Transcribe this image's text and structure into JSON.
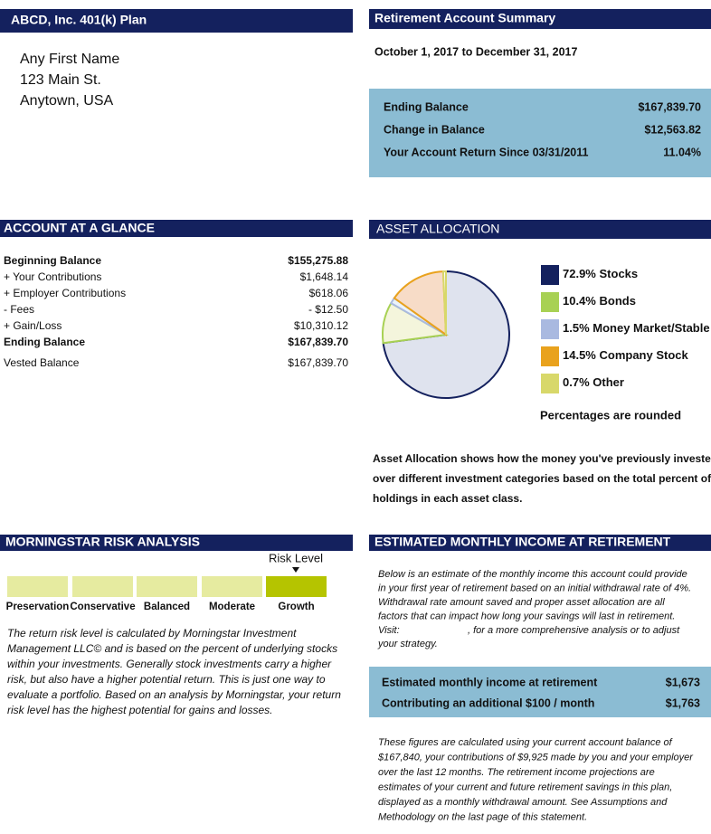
{
  "header": {
    "title": "ABCD, Inc. 401(k) Plan",
    "address": [
      "Any First Name",
      "123 Main St.",
      "Anytown, USA"
    ]
  },
  "summary": {
    "title": "Retirement Account Summary",
    "period": "October 1, 2017 to December 31, 2017",
    "rows": [
      {
        "label": "Ending Balance",
        "value": "$167,839.70"
      },
      {
        "label": "Change in Balance",
        "value": "$12,563.82"
      },
      {
        "label": "Your Account Return Since 03/31/2011",
        "value": "11.04%"
      }
    ]
  },
  "glance": {
    "title": "ACCOUNT AT A GLANCE",
    "rows": [
      {
        "label": "Beginning Balance",
        "value": "$155,275.88",
        "bold": true
      },
      {
        "label": "+ Your Contributions",
        "value": "$1,648.14"
      },
      {
        "label": "+ Employer Contributions",
        "value": "$618.06"
      },
      {
        "label": " - Fees",
        "value": "- $12.50"
      },
      {
        "label": "+ Gain/Loss",
        "value": "$10,310.12"
      },
      {
        "label": "Ending Balance",
        "value": "$167,839.70",
        "bold": true
      },
      {
        "label": "Vested Balance",
        "value": "$167,839.70"
      }
    ]
  },
  "allocation": {
    "title": "ASSET ALLOCATION",
    "chart": {
      "type": "pie",
      "categories": [
        "Stocks",
        "Bonds",
        "Money Market/Stable Value",
        "Company Stock",
        "Other"
      ],
      "values": [
        72.9,
        10.4,
        1.5,
        14.5,
        0.7
      ],
      "value_labels": [
        "72.9%",
        "10.4%",
        "1.5%",
        "14.5%",
        "0.7%"
      ],
      "colors": [
        "#14215e",
        "#a8d154",
        "#a9b9e0",
        "#e9a21d",
        "#d8d86a"
      ],
      "fills": [
        "#dfe3ee",
        "#f4f5dc",
        "#eaf3fa",
        "#f7dcc7",
        "#ffffff"
      ]
    },
    "note": "Percentages are rounded",
    "description": [
      "Asset Allocation shows how the money you've previously invested is distributed",
      "over different investment categories based on the total percent of underlying",
      "holdings in each asset class."
    ]
  },
  "risk": {
    "title": "MORNINGSTAR RISK ANALYSIS",
    "level_label": "Risk Level",
    "levels": [
      "Preservation",
      "Conservative",
      "Balanced",
      "Moderate",
      "Growth"
    ],
    "selected_level": 4,
    "description": [
      "The return risk level is calculated by Morningstar Investment",
      "Management LLC© and is based on the percent of underlying stocks",
      "within your investments. Generally stock investments carry a higher",
      "risk, but also have a higher potential return. This is just one way to",
      "evaluate a portfolio. Based on an analysis by Morningstar, your return",
      "risk level has the highest potential for gains and losses."
    ]
  },
  "income": {
    "title": "ESTIMATED MONTHLY INCOME AT RETIREMENT",
    "intro": [
      "Below is an estimate of the monthly income this account could provide",
      "in your first year of retirement based on an initial withdrawal rate of 4%.",
      "Withdrawal rate amount saved and proper asset allocation are all",
      "factors that can impact how long your savings will last in retirement."
    ],
    "visit": "Visit:",
    "visit_rest": ", for a more comprehensive analysis or to adjust",
    "intro_end": "your strategy.",
    "rows": [
      {
        "label": "Estimated monthly income at retirement",
        "value": "$1,673"
      },
      {
        "label": "Contributing an additional $100 / month",
        "value": "$1,763"
      }
    ],
    "footnote": [
      "These figures are calculated using your current account balance of",
      "$167,840, your contributions of $9,925 made by you and your employer",
      "over the last 12 months. The retirement income projections are",
      "estimates of your current and future retirement savings in this plan,",
      "displayed as a monthly withdrawal amount. See Assumptions and",
      "Methodology on the last page of this statement."
    ]
  }
}
